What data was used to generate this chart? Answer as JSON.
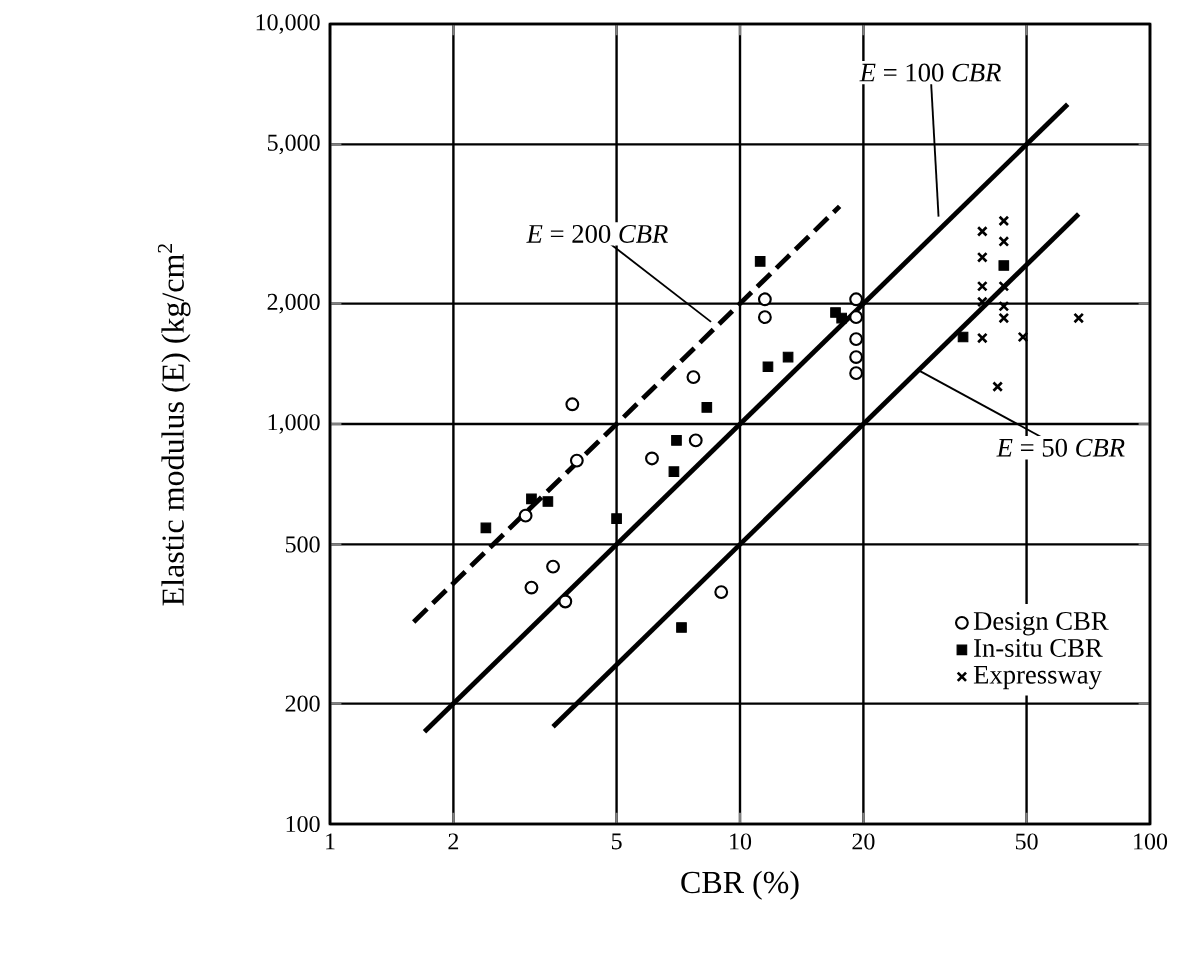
{
  "chart_data": {
    "type": "scatter",
    "xlabel": "CBR (%)",
    "ylabel": "Elastic modulus (E) (kg/cm$^{2}$",
    "log": "xy",
    "grid": true,
    "legend": "bottom right",
    "xlim": [
      1,
      100
    ],
    "ylim": [
      100,
      10000
    ],
    "xticks": [
      1,
      2,
      5,
      10,
      20,
      50,
      100
    ],
    "yticks": [
      {
        "value": 100,
        "label": "100"
      },
      {
        "value": 200,
        "label": "200"
      },
      {
        "value": 500,
        "label": "500"
      },
      {
        "value": 1000,
        "label": "1,000"
      },
      {
        "value": 2000,
        "label": "2,000"
      },
      {
        "value": 5000,
        "label": "5,000"
      },
      {
        "value": 10000,
        "label": "10,000"
      }
    ],
    "series": [
      {
        "name": "Design CBR",
        "marker": "circle",
        "color": "#000000",
        "x": [
          3.9,
          4.0,
          3.0,
          6.1,
          7.8,
          7.7,
          3.1,
          3.5,
          3.75,
          9.0,
          11.5,
          11.5,
          19.2,
          19.2,
          19.2,
          19.2,
          19.2
        ],
        "values": [
          1120,
          810,
          590,
          820,
          910,
          1310,
          390,
          440,
          360,
          380,
          2050,
          1850,
          2050,
          1850,
          1630,
          1470,
          1340
        ]
      },
      {
        "name": "In-situ CBR",
        "marker": "square",
        "color": "#000000",
        "x": [
          2.4,
          3.1,
          3.4,
          5.0,
          7.0,
          6.9,
          8.3,
          7.2,
          11.2,
          11.7,
          13.1,
          17.1,
          17.7,
          44,
          35
        ],
        "values": [
          550,
          650,
          640,
          580,
          910,
          760,
          1100,
          310,
          2550,
          1390,
          1470,
          1900,
          1840,
          2490,
          1650
        ]
      },
      {
        "name": "Expressway",
        "marker": "cross",
        "color": "#000000",
        "x": [
          39,
          39,
          39,
          39,
          44,
          44,
          44,
          44,
          44,
          39,
          49,
          67,
          42.5
        ],
        "values": [
          3030,
          2610,
          2210,
          2020,
          3220,
          2860,
          2210,
          1970,
          1840,
          1640,
          1650,
          1840,
          1240
        ]
      },
      {
        "type": "line",
        "marker": "none",
        "line_style": "dashed",
        "color": "#000000",
        "x": [
          1.6,
          17.5
        ],
        "values": [
          320,
          3500
        ]
      },
      {
        "type": "line",
        "marker": "none",
        "line_style": "solid",
        "color": "#000000",
        "x": [
          1.7,
          63
        ],
        "values": [
          170,
          6300
        ]
      },
      {
        "type": "line",
        "marker": "none",
        "line_style": "solid",
        "color": "#000000",
        "x": [
          3.5,
          67
        ],
        "values": [
          175,
          3350
        ]
      }
    ],
    "annotations": [
      {
        "text": "*E* = 200 *CBR*",
        "x": 8.5,
        "y": 1800
      },
      {
        "text": "*E* = 100 *CBR*",
        "x": 30.5,
        "y": 3300
      },
      {
        "text": "*E* = 50 *CBR*",
        "x": 27,
        "y": 1370
      }
    ]
  }
}
